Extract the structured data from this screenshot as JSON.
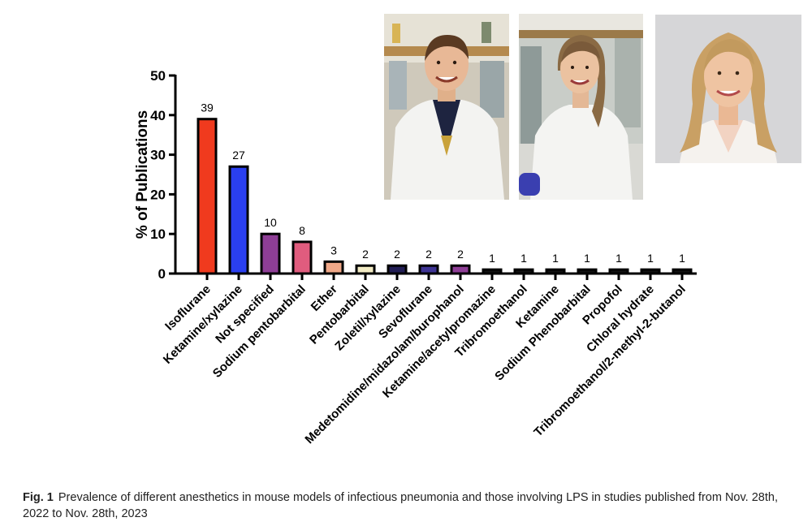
{
  "chart_data": {
    "type": "bar",
    "categories": [
      "Isoflurane",
      "Ketamine/xylazine",
      "Not specified",
      "Sodium pentobarbital",
      "Ether",
      "Pentobarbital",
      "Zoletil/xylazine",
      "Sevoflurane",
      "Medetomidine/midazolam/burophanol",
      "Ketamine/acetylpromazine",
      "Tribromoethanol",
      "Ketamine",
      "Sodium Phenobarbital",
      "Propofol",
      "Chloral hydrate",
      "Tribromoethanol/2-methyl-2-butanol"
    ],
    "values": [
      39,
      27,
      10,
      8,
      3,
      2,
      2,
      2,
      2,
      1,
      1,
      1,
      1,
      1,
      1,
      1
    ],
    "data_labels": [
      "39",
      "27",
      "10",
      "8",
      "3",
      "2",
      "2",
      "2",
      "2",
      "1",
      "1",
      "1",
      "1",
      "1",
      "1",
      "1"
    ],
    "bar_colors": [
      "#f03a1e",
      "#2a3ff0",
      "#8e3e96",
      "#e05c7e",
      "#f0a888",
      "#f2ebc4",
      "#221e55",
      "#3e3494",
      "#8e3e96",
      "#111111",
      "#111111",
      "#111111",
      "#111111",
      "#111111",
      "#111111",
      "#111111"
    ],
    "title": "",
    "xlabel": "",
    "ylabel": "% of Publications",
    "ylim": [
      0,
      50
    ],
    "yticks": [
      0,
      10,
      20,
      30,
      40,
      50
    ],
    "grid": false,
    "legend": "none"
  },
  "photos": [
    {
      "icon": "researcher-photo-man-lab-coat"
    },
    {
      "icon": "researcher-photo-woman-lab-coat"
    },
    {
      "icon": "researcher-photo-woman-portrait"
    }
  ],
  "caption": {
    "label": "Fig. 1",
    "text": "Prevalence of different anesthetics in mouse models of infectious pneumonia and those involving LPS in studies published from Nov. 28th, 2022 to Nov. 28th, 2023"
  }
}
